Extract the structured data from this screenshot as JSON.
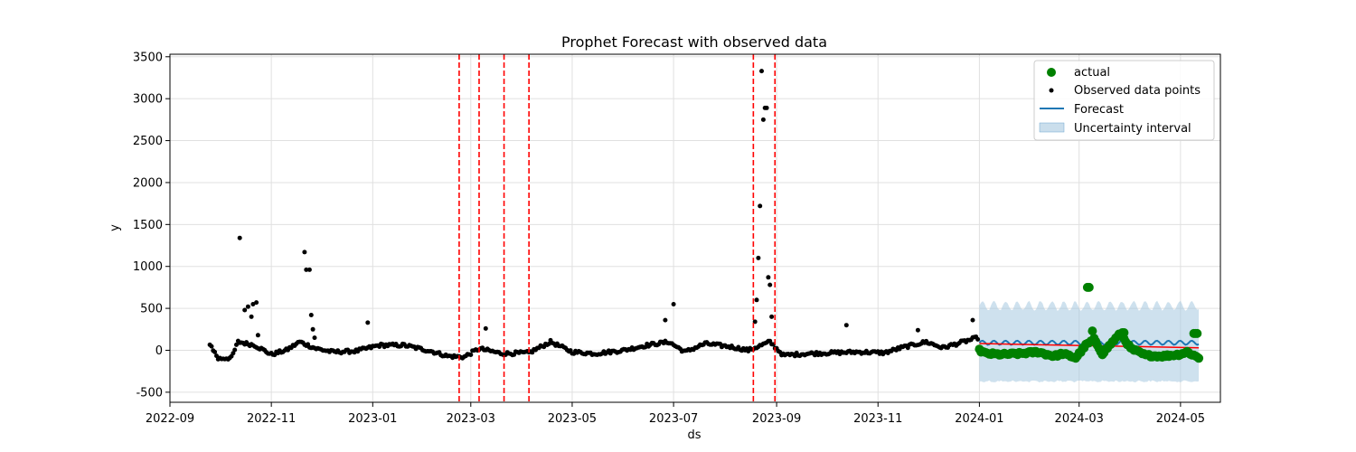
{
  "chart_data": {
    "type": "scatter",
    "title": "Prophet Forecast with observed data",
    "xlabel": "ds",
    "ylabel": "y",
    "xlim": [
      "2022-09-01",
      "2024-05-25"
    ],
    "ylim": [
      -620,
      3530
    ],
    "grid": true,
    "legend_position": "top-right",
    "x_ticks": [
      "2022-09",
      "2022-11",
      "2023-01",
      "2023-03",
      "2023-05",
      "2023-07",
      "2023-09",
      "2023-11",
      "2024-01",
      "2024-03",
      "2024-05"
    ],
    "y_ticks": [
      -500,
      0,
      500,
      1000,
      1500,
      2000,
      2500,
      3000,
      3500
    ],
    "legend": [
      "actual",
      "Observed data points",
      "Forecast",
      "Uncertainty interval"
    ],
    "colors": {
      "actual": "#008000",
      "observed": "#000000",
      "forecast": "#1f77b4",
      "uncertainty": "#a6c8e0",
      "changepoint": "#ff0000",
      "trend": "#ff0000"
    },
    "changepoints": [
      "2023-02-22",
      "2023-03-06",
      "2023-03-21",
      "2023-04-05",
      "2023-08-18",
      "2023-08-31"
    ],
    "observed": {
      "x_start": "2022-09-25",
      "x_end": "2023-12-31",
      "anchors": [
        [
          "2022-09-25",
          80
        ],
        [
          "2022-09-30",
          -100
        ],
        [
          "2022-10-08",
          -90
        ],
        [
          "2022-10-12",
          100
        ],
        [
          "2022-10-22",
          60
        ],
        [
          "2022-11-01",
          -50
        ],
        [
          "2022-11-10",
          0
        ],
        [
          "2022-11-18",
          100
        ],
        [
          "2022-11-28",
          20
        ],
        [
          "2022-12-08",
          -20
        ],
        [
          "2022-12-22",
          -10
        ],
        [
          "2023-01-05",
          60
        ],
        [
          "2023-01-20",
          60
        ],
        [
          "2023-02-05",
          -10
        ],
        [
          "2023-02-15",
          -70
        ],
        [
          "2023-02-25",
          -80
        ],
        [
          "2023-03-06",
          20
        ],
        [
          "2023-03-20",
          -40
        ],
        [
          "2023-04-05",
          -30
        ],
        [
          "2023-04-18",
          100
        ],
        [
          "2023-05-01",
          -20
        ],
        [
          "2023-05-15",
          -40
        ],
        [
          "2023-06-01",
          0
        ],
        [
          "2023-06-15",
          60
        ],
        [
          "2023-06-28",
          100
        ],
        [
          "2023-07-08",
          -20
        ],
        [
          "2023-07-20",
          80
        ],
        [
          "2023-08-05",
          40
        ],
        [
          "2023-08-15",
          0
        ],
        [
          "2023-08-28",
          100
        ],
        [
          "2023-09-05",
          -60
        ],
        [
          "2023-09-20",
          -40
        ],
        [
          "2023-10-05",
          -30
        ],
        [
          "2023-10-20",
          -20
        ],
        [
          "2023-11-05",
          -30
        ],
        [
          "2023-11-15",
          30
        ],
        [
          "2023-11-30",
          100
        ],
        [
          "2023-12-10",
          30
        ],
        [
          "2023-12-31",
          150
        ]
      ],
      "spikes": [
        [
          "2022-10-13",
          1340
        ],
        [
          "2022-10-16",
          480
        ],
        [
          "2022-10-18",
          520
        ],
        [
          "2022-10-20",
          400
        ],
        [
          "2022-10-21",
          550
        ],
        [
          "2022-10-23",
          570
        ],
        [
          "2022-10-24",
          180
        ],
        [
          "2022-11-21",
          1170
        ],
        [
          "2022-11-22",
          960
        ],
        [
          "2022-11-24",
          960
        ],
        [
          "2022-11-25",
          420
        ],
        [
          "2022-11-26",
          250
        ],
        [
          "2022-11-27",
          150
        ],
        [
          "2022-12-29",
          330
        ],
        [
          "2023-03-10",
          260
        ],
        [
          "2023-06-26",
          360
        ],
        [
          "2023-07-01",
          550
        ],
        [
          "2023-08-19",
          340
        ],
        [
          "2023-08-20",
          600
        ],
        [
          "2023-08-21",
          1100
        ],
        [
          "2023-08-22",
          1720
        ],
        [
          "2023-08-23",
          3330
        ],
        [
          "2023-08-24",
          2750
        ],
        [
          "2023-08-25",
          2890
        ],
        [
          "2023-08-26",
          2890
        ],
        [
          "2023-08-27",
          870
        ],
        [
          "2023-08-28",
          780
        ],
        [
          "2023-08-29",
          400
        ],
        [
          "2023-10-13",
          300
        ],
        [
          "2023-12-28",
          360
        ],
        [
          "2023-11-25",
          240
        ]
      ]
    },
    "forecast": {
      "x_start": "2024-01-01",
      "x_end": "2024-05-12",
      "center": 90,
      "trend_start": 80,
      "trend_end": 30,
      "band_half_width": 440
    },
    "actual": {
      "x_start": "2024-01-01",
      "x_end": "2024-05-12",
      "anchors": [
        [
          "2024-01-01",
          0
        ],
        [
          "2024-01-05",
          -40
        ],
        [
          "2024-01-15",
          -50
        ],
        [
          "2024-01-25",
          -40
        ],
        [
          "2024-02-05",
          -20
        ],
        [
          "2024-02-15",
          -70
        ],
        [
          "2024-02-20",
          -40
        ],
        [
          "2024-02-28",
          -90
        ],
        [
          "2024-03-05",
          60
        ],
        [
          "2024-03-10",
          130
        ],
        [
          "2024-03-15",
          -40
        ],
        [
          "2024-03-22",
          120
        ],
        [
          "2024-03-26",
          200
        ],
        [
          "2024-04-01",
          20
        ],
        [
          "2024-04-10",
          -60
        ],
        [
          "2024-04-20",
          -70
        ],
        [
          "2024-04-30",
          -50
        ],
        [
          "2024-05-05",
          -20
        ],
        [
          "2024-05-12",
          -90
        ]
      ],
      "spikes": [
        [
          "2024-03-06",
          750
        ],
        [
          "2024-03-07",
          750
        ],
        [
          "2024-03-09",
          230
        ],
        [
          "2024-03-27",
          210
        ],
        [
          "2024-03-28",
          210
        ],
        [
          "2024-05-09",
          200
        ],
        [
          "2024-05-10",
          200
        ],
        [
          "2024-05-11",
          200
        ]
      ]
    }
  }
}
